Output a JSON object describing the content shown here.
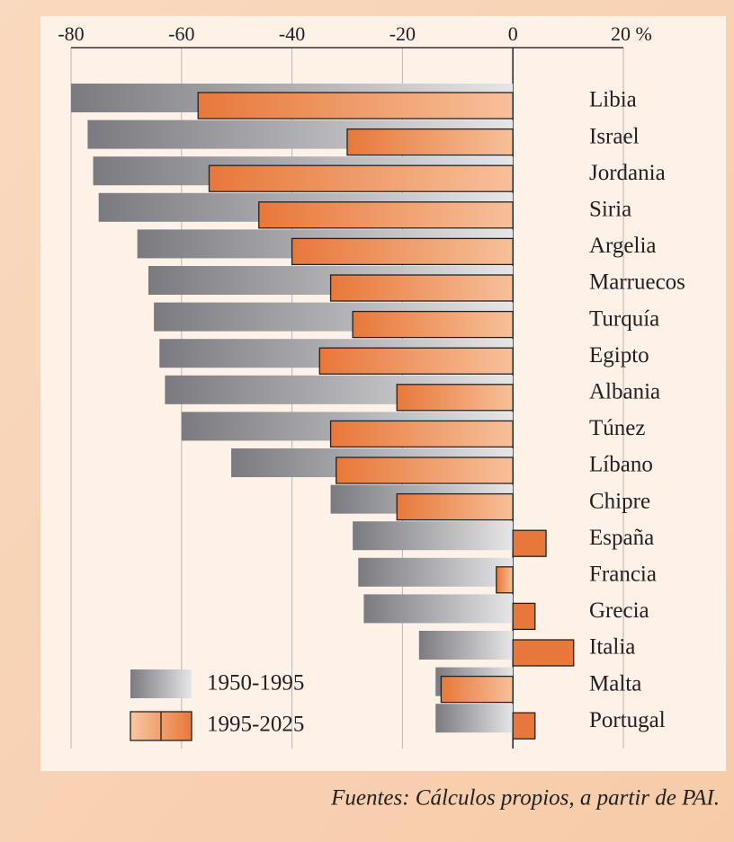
{
  "chart_data": {
    "type": "bar",
    "orientation": "horizontal",
    "categories": [
      "Libia",
      "Israel",
      "Jordania",
      "Siria",
      "Argelia",
      "Marruecos",
      "Turquía",
      "Egipto",
      "Albania",
      "Túnez",
      "Líbano",
      "Chipre",
      "España",
      "Francia",
      "Grecia",
      "Italia",
      "Malta",
      "Portugal"
    ],
    "series": [
      {
        "name": "1950-1995",
        "color": "#7a7a80",
        "values": [
          -80,
          -77,
          -76,
          -75,
          -68,
          -66,
          -65,
          -64,
          -63,
          -60,
          -51,
          -33,
          -29,
          -28,
          -27,
          -17,
          -14,
          -14
        ]
      },
      {
        "name": "1995-2025",
        "color": "#e8783a",
        "values": [
          -57,
          -30,
          -55,
          -46,
          -40,
          -33,
          -29,
          -35,
          -21,
          -33,
          -32,
          -21,
          6,
          -3,
          4,
          11,
          -13,
          4
        ]
      }
    ],
    "xlim": [
      -80,
      20
    ],
    "xticks": [
      -80,
      -60,
      -40,
      -20,
      0,
      {
        "value": 20,
        "label": "20 %"
      }
    ],
    "grid": true,
    "legend": "bottom-left",
    "source": "Fuentes: Cálculos propios, a partir de PAI."
  }
}
